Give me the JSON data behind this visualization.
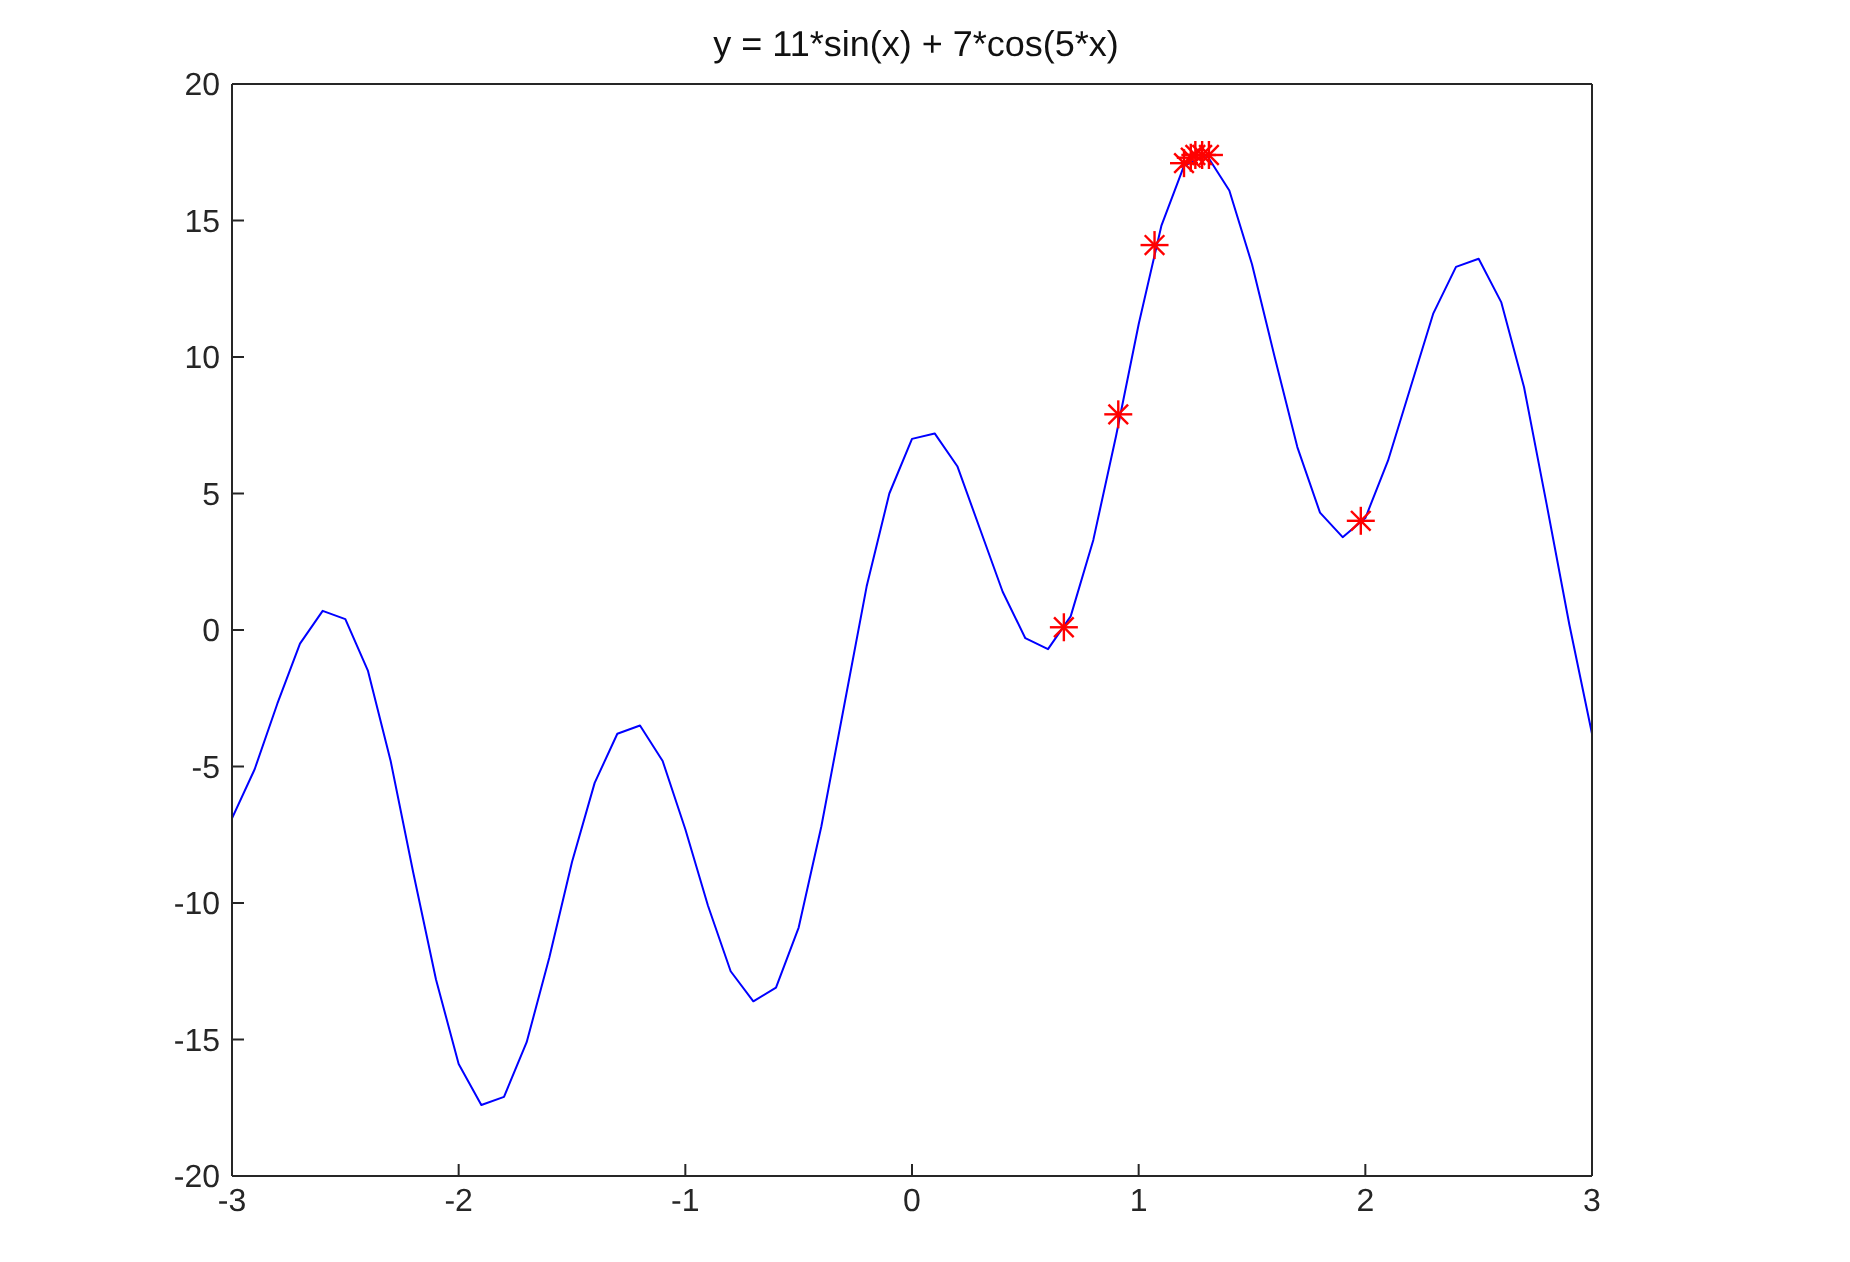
{
  "chart_data": {
    "type": "line",
    "title": "y = 11*sin(x) + 7*cos(5*x)",
    "xlim": [
      -3,
      3
    ],
    "xticks": [
      -3,
      -2,
      -1,
      0,
      1,
      2,
      3
    ],
    "ylim": [
      -20,
      20
    ],
    "yticks": [
      -20,
      -15,
      -10,
      -5,
      0,
      5,
      10,
      15,
      20
    ],
    "series": [
      {
        "color": "#0000ff",
        "marker": "none",
        "x": [
          -3.0,
          -2.9,
          -2.8,
          -2.7,
          -2.6,
          -2.5,
          -2.4,
          -2.3,
          -2.2,
          -2.1,
          -2.0,
          -1.9,
          -1.8,
          -1.7,
          -1.6,
          -1.5,
          -1.4,
          -1.3,
          -1.2,
          -1.1,
          -1.0,
          -0.9,
          -0.8,
          -0.7,
          -0.6,
          -0.5,
          -0.4,
          -0.3,
          -0.2,
          -0.1,
          0.0,
          0.1,
          0.2,
          0.3,
          0.4,
          0.5,
          0.6,
          0.7,
          0.8,
          0.9,
          1.0,
          1.1,
          1.2,
          1.3,
          1.4,
          1.5,
          1.6,
          1.7,
          1.8,
          1.9,
          2.0,
          2.1,
          2.2,
          2.3,
          2.4,
          2.5,
          2.6,
          2.7,
          2.8,
          2.9,
          3.0
        ],
        "values": [
          -6.9,
          -5.1,
          -2.7,
          -0.5,
          0.7,
          0.4,
          -1.5,
          -4.8,
          -8.9,
          -12.8,
          -15.9,
          -17.4,
          -17.1,
          -15.1,
          -12.0,
          -8.5,
          -5.6,
          -3.8,
          -3.5,
          -4.8,
          -7.3,
          -10.1,
          -12.5,
          -13.6,
          -13.1,
          -10.9,
          -7.2,
          -2.8,
          1.6,
          5.0,
          7.0,
          7.2,
          6.0,
          3.7,
          1.4,
          -0.3,
          -0.7,
          0.5,
          3.3,
          7.1,
          11.2,
          14.8,
          17.0,
          17.4,
          16.1,
          13.4,
          10.0,
          6.7,
          4.3,
          3.4,
          4.1,
          6.2,
          8.9,
          11.6,
          13.3,
          13.6,
          12.0,
          8.9,
          4.6,
          0.2,
          -3.8
        ]
      },
      {
        "type": "scatter",
        "color": "#ff0000",
        "marker": "cross",
        "x": [
          0.67,
          0.91,
          1.07,
          1.2,
          1.23,
          1.25,
          1.28,
          1.31,
          1.98
        ],
        "values": [
          0.1,
          7.9,
          14.1,
          17.1,
          17.3,
          17.4,
          17.4,
          17.4,
          4.0
        ]
      }
    ]
  }
}
